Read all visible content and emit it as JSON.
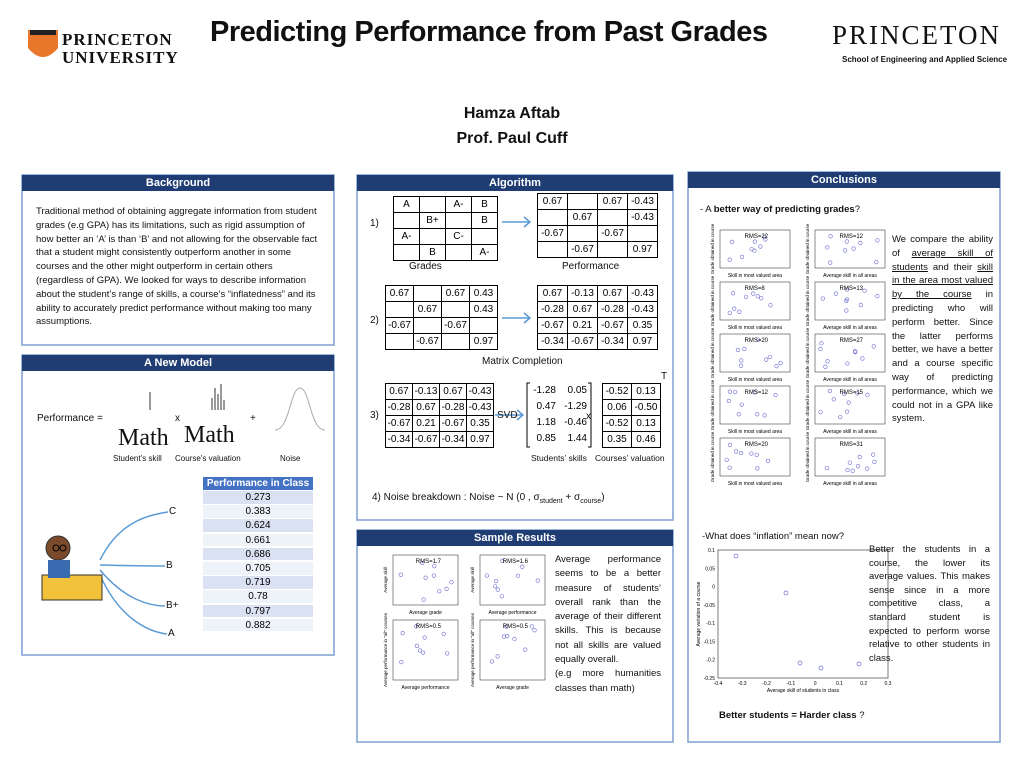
{
  "header": {
    "title": "Predicting Performance from Past Grades",
    "authors": [
      "Hamza Aftab",
      "Prof. Paul Cuff"
    ],
    "logo_left": [
      "PRINCETON",
      "UNIVERSITY"
    ],
    "logo_right": [
      "PRINCETON",
      "School of Engineering and Applied Science"
    ]
  },
  "background": {
    "heading": "Background",
    "text": "Traditional method of obtaining aggregate information from student grades (e.g GPA) has its limitations, such as rigid assumption of how better an ‘A’ is than ‘B’ and not allowing for the  observable fact that a student might consistently outperform another in some courses and the other might outperform in certain others (regardless of GPA).  We looked for ways to describe information about the student’s range of skills, a course’s “inflatedness” and its ability to accurately predict performance without making too many assumptions."
  },
  "model": {
    "heading": "A New Model",
    "equation": [
      "Performance  =",
      "x",
      "+"
    ],
    "math": [
      "Math",
      "Math"
    ],
    "captions": [
      "Student’s skill",
      "Course’s valuation",
      "Noise"
    ],
    "table_header": "Performance in Class",
    "table_rows": [
      "0.273",
      "0.383",
      "0.624",
      "0.661",
      "0.686",
      "0.705",
      "0.719",
      "0.78",
      "0.797",
      "0.882"
    ],
    "grades": [
      "C",
      "B",
      "B+",
      "A"
    ]
  },
  "algorithm": {
    "heading": "Algorithm",
    "steps": [
      "1)",
      "2)",
      "3)"
    ],
    "grades_label": "Grades",
    "performance_label": "Performance",
    "matrix_completion": "Matrix Completion",
    "svd": "SVD",
    "times": "x",
    "transpose": "T",
    "students_skills": "Students’ skills",
    "courses_valuation": "Courses’ valuation",
    "grades": [
      [
        "A",
        "",
        "A-",
        "B"
      ],
      [
        "",
        "B+",
        "",
        "B"
      ],
      [
        "A-",
        "",
        "C-",
        ""
      ],
      [
        "",
        "B",
        "",
        "A-"
      ]
    ],
    "performance": [
      [
        "0.67",
        "",
        "0.67",
        "-0.43"
      ],
      [
        "",
        "0.67",
        "",
        "-0.43"
      ],
      [
        "-0.67",
        "",
        "-0.67",
        ""
      ],
      [
        "",
        "-0.67",
        "",
        "0.97"
      ]
    ],
    "partial": [
      [
        "0.67",
        "",
        "0.67",
        "0.43"
      ],
      [
        "",
        "0.67",
        "",
        "0.43"
      ],
      [
        "-0.67",
        "",
        "-0.67",
        ""
      ],
      [
        "",
        "-0.67",
        "",
        "0.97"
      ]
    ],
    "completed": [
      [
        "0.67",
        "-0.13",
        "0.67",
        "-0.43"
      ],
      [
        "-0.28",
        "0.67",
        "-0.28",
        "-0.43"
      ],
      [
        "-0.67",
        "0.21",
        "-0.67",
        "0.35"
      ],
      [
        "-0.34",
        "-0.67",
        "-0.34",
        "0.97"
      ]
    ],
    "svd_input": [
      [
        "0.67",
        "-0.13",
        "0.67",
        "-0.43"
      ],
      [
        "-0.28",
        "0.67",
        "-0.28",
        "-0.43"
      ],
      [
        "-0.67",
        "0.21",
        "-0.67",
        "0.35"
      ],
      [
        "-0.34",
        "-0.67",
        "-0.34",
        "0.97"
      ]
    ],
    "skills": [
      [
        "-1.28",
        "0.05"
      ],
      [
        "0.47",
        "-1.29"
      ],
      [
        "1.18",
        "-0.46"
      ],
      [
        "0.85",
        "1.44"
      ]
    ],
    "valuations": [
      [
        "-0.52",
        "0.13"
      ],
      [
        "0.06",
        "-0.50"
      ],
      [
        "-0.52",
        "0.13"
      ],
      [
        "0.35",
        "0.46"
      ]
    ],
    "noise": [
      "4)  Noise breakdown  :  Noise  ~  N (0 , σ",
      "student",
      " + σ",
      "course",
      ")"
    ]
  },
  "sample_results": {
    "heading": "Sample Results",
    "plots": [
      {
        "rms": "RMS=1.7",
        "xlabel": "Average grade",
        "ylabel": "Average skill"
      },
      {
        "rms": "RMS=1.6",
        "xlabel": "Average performance",
        "ylabel": "Average skill"
      },
      {
        "rms": "RMS=0.5",
        "xlabel": "Average performance",
        "ylabel": "Average performance in \"all\" courses"
      },
      {
        "rms": "RMS=0.5",
        "xlabel": "Average grade",
        "ylabel": "Average performance in \"all\" courses"
      }
    ],
    "text": "Average performance seems to be a better measure of students’ overall rank than the average of their different skills. This is because not all skills are valued equally overall.",
    "note": "(e.g more humanities classes than math)"
  },
  "conclusions": {
    "heading": "Conclusions",
    "question1": [
      "-  A ",
      "better way of predicting grades",
      "?"
    ],
    "paragraph1": [
      "We compare the ability of ",
      "average skill of students",
      " and their ",
      "skill in the area most valued by the course",
      " in predicting who will perform better. Since the latter performs better, we have a better and a course specific way of predicting performance, which we could not in a GPA like system."
    ],
    "plots": {
      "rms": [
        "RMS=22",
        "RMS=12",
        "RMS=8",
        "RMS=13",
        "RMS=20",
        "RMS=27",
        "RMS=12",
        "RMS=15",
        "RMS=20",
        "RMS=31"
      ],
      "xlabels": [
        "Skill in most valued area",
        "Average skill in all areas"
      ],
      "ylabel": "Grade obtained in course"
    },
    "question2": "-What does “inflation” mean now?",
    "paragraph2": "Better the students in a course, the lower its average values. This makes sense since in a more competitive class, a standard student is expected to perform worse relative to other students in class.",
    "big_plot": {
      "xlabel": "Average skill of students in class",
      "ylabel": "Average variation of a course",
      "xticks": [
        "-0.4",
        "-0.3",
        "-0.2",
        "-0.1",
        "0",
        "0.1",
        "0.2",
        "0.3"
      ],
      "yticks": [
        "0.1",
        "0.05",
        "0",
        "-0.05",
        "-0.1",
        "-0.15",
        "-0.2",
        "-0.25"
      ]
    },
    "footer": [
      "Better students = ",
      "Harder class",
      " ?"
    ]
  }
}
